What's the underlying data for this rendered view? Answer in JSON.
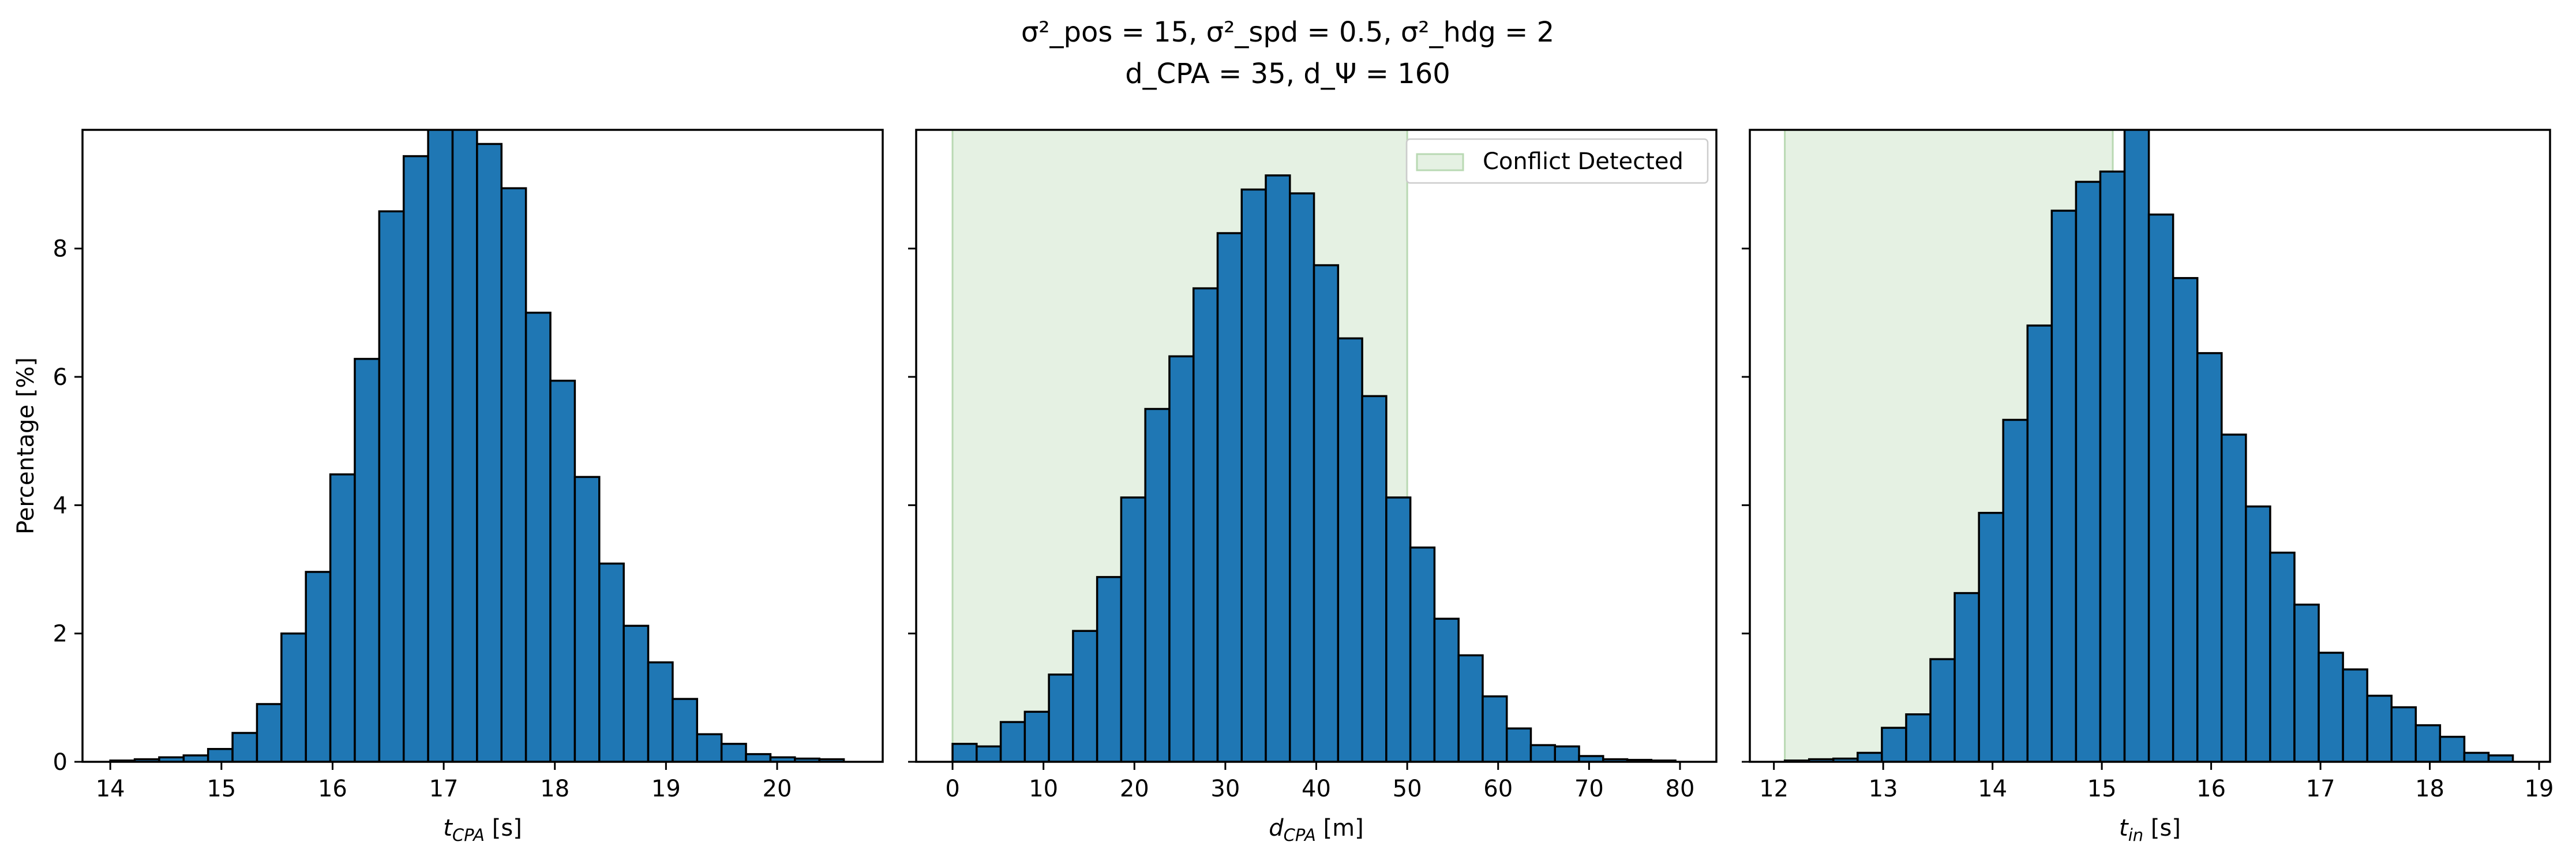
{
  "figure": {
    "suptitle_line1": "σ²_pos = 15, σ²_spd = 0.5, σ²_hdg = 2",
    "suptitle_line2": "d_CPA = 35, d_Ψ = 160"
  },
  "colors": {
    "bar_fill": "#1f77b4",
    "bar_edge": "#000000",
    "conflict_fill": "#e5f1e3",
    "conflict_edge": "#b9d9b3",
    "axis": "#000000"
  },
  "chart_data": [
    {
      "type": "bar",
      "ylabel": "Percentage [%]",
      "xlabel_main": "t",
      "xlabel_sub": "CPA",
      "xlabel_unit": " [s]",
      "xlim": [
        13.75,
        20.95
      ],
      "ylim": [
        0,
        9.85
      ],
      "xticks": [
        14,
        15,
        16,
        17,
        18,
        19,
        20
      ],
      "yticks": [
        0,
        2,
        4,
        6,
        8
      ],
      "show_ytick_labels": true,
      "bin_start": 14.0,
      "bin_width": 0.22,
      "values": [
        0.02,
        0.04,
        0.07,
        0.1,
        0.2,
        0.45,
        0.9,
        2.0,
        2.96,
        4.48,
        6.28,
        8.58,
        9.44,
        10.0,
        10.0,
        9.63,
        8.94,
        7.0,
        5.94,
        4.44,
        3.09,
        2.12,
        1.55,
        0.98,
        0.43,
        0.28,
        0.12,
        0.07,
        0.05,
        0.04
      ]
    },
    {
      "type": "bar",
      "xlabel_main": "d",
      "xlabel_sub": "CPA",
      "xlabel_unit": " [m]",
      "xlim": [
        -4,
        84
      ],
      "ylim": [
        0,
        9.85
      ],
      "xticks": [
        0,
        10,
        20,
        30,
        40,
        50,
        60,
        70,
        80
      ],
      "yticks": [
        0,
        2,
        4,
        6,
        8
      ],
      "show_ytick_labels": false,
      "conflict_range": [
        0,
        50
      ],
      "legend": "Conflict Detected",
      "legend_loc": "upper right",
      "bin_start": 0,
      "bin_width": 2.65,
      "values": [
        0.28,
        0.24,
        0.62,
        0.78,
        1.36,
        2.04,
        2.88,
        4.12,
        5.5,
        6.32,
        7.38,
        8.24,
        8.92,
        9.14,
        8.86,
        7.74,
        6.6,
        5.7,
        4.12,
        3.34,
        2.23,
        1.66,
        1.02,
        0.52,
        0.26,
        0.24,
        0.09,
        0.04,
        0.03,
        0.02
      ]
    },
    {
      "type": "bar",
      "xlabel_main": "t",
      "xlabel_sub": "in",
      "xlabel_unit": " [s]",
      "xlim": [
        11.78,
        19.1
      ],
      "ylim": [
        0,
        9.85
      ],
      "xticks": [
        12,
        13,
        14,
        15,
        16,
        17,
        18,
        19
      ],
      "yticks": [
        0,
        2,
        4,
        6,
        8
      ],
      "show_ytick_labels": false,
      "conflict_range": [
        12.1,
        15.1
      ],
      "bin_start": 12.1,
      "bin_width": 0.222,
      "values": [
        0.02,
        0.04,
        0.05,
        0.14,
        0.53,
        0.74,
        1.6,
        2.63,
        3.88,
        5.33,
        6.8,
        8.59,
        9.04,
        9.2,
        10.0,
        8.53,
        7.54,
        6.37,
        5.1,
        3.98,
        3.26,
        2.45,
        1.7,
        1.44,
        1.03,
        0.85,
        0.57,
        0.39,
        0.14,
        0.1
      ]
    }
  ]
}
